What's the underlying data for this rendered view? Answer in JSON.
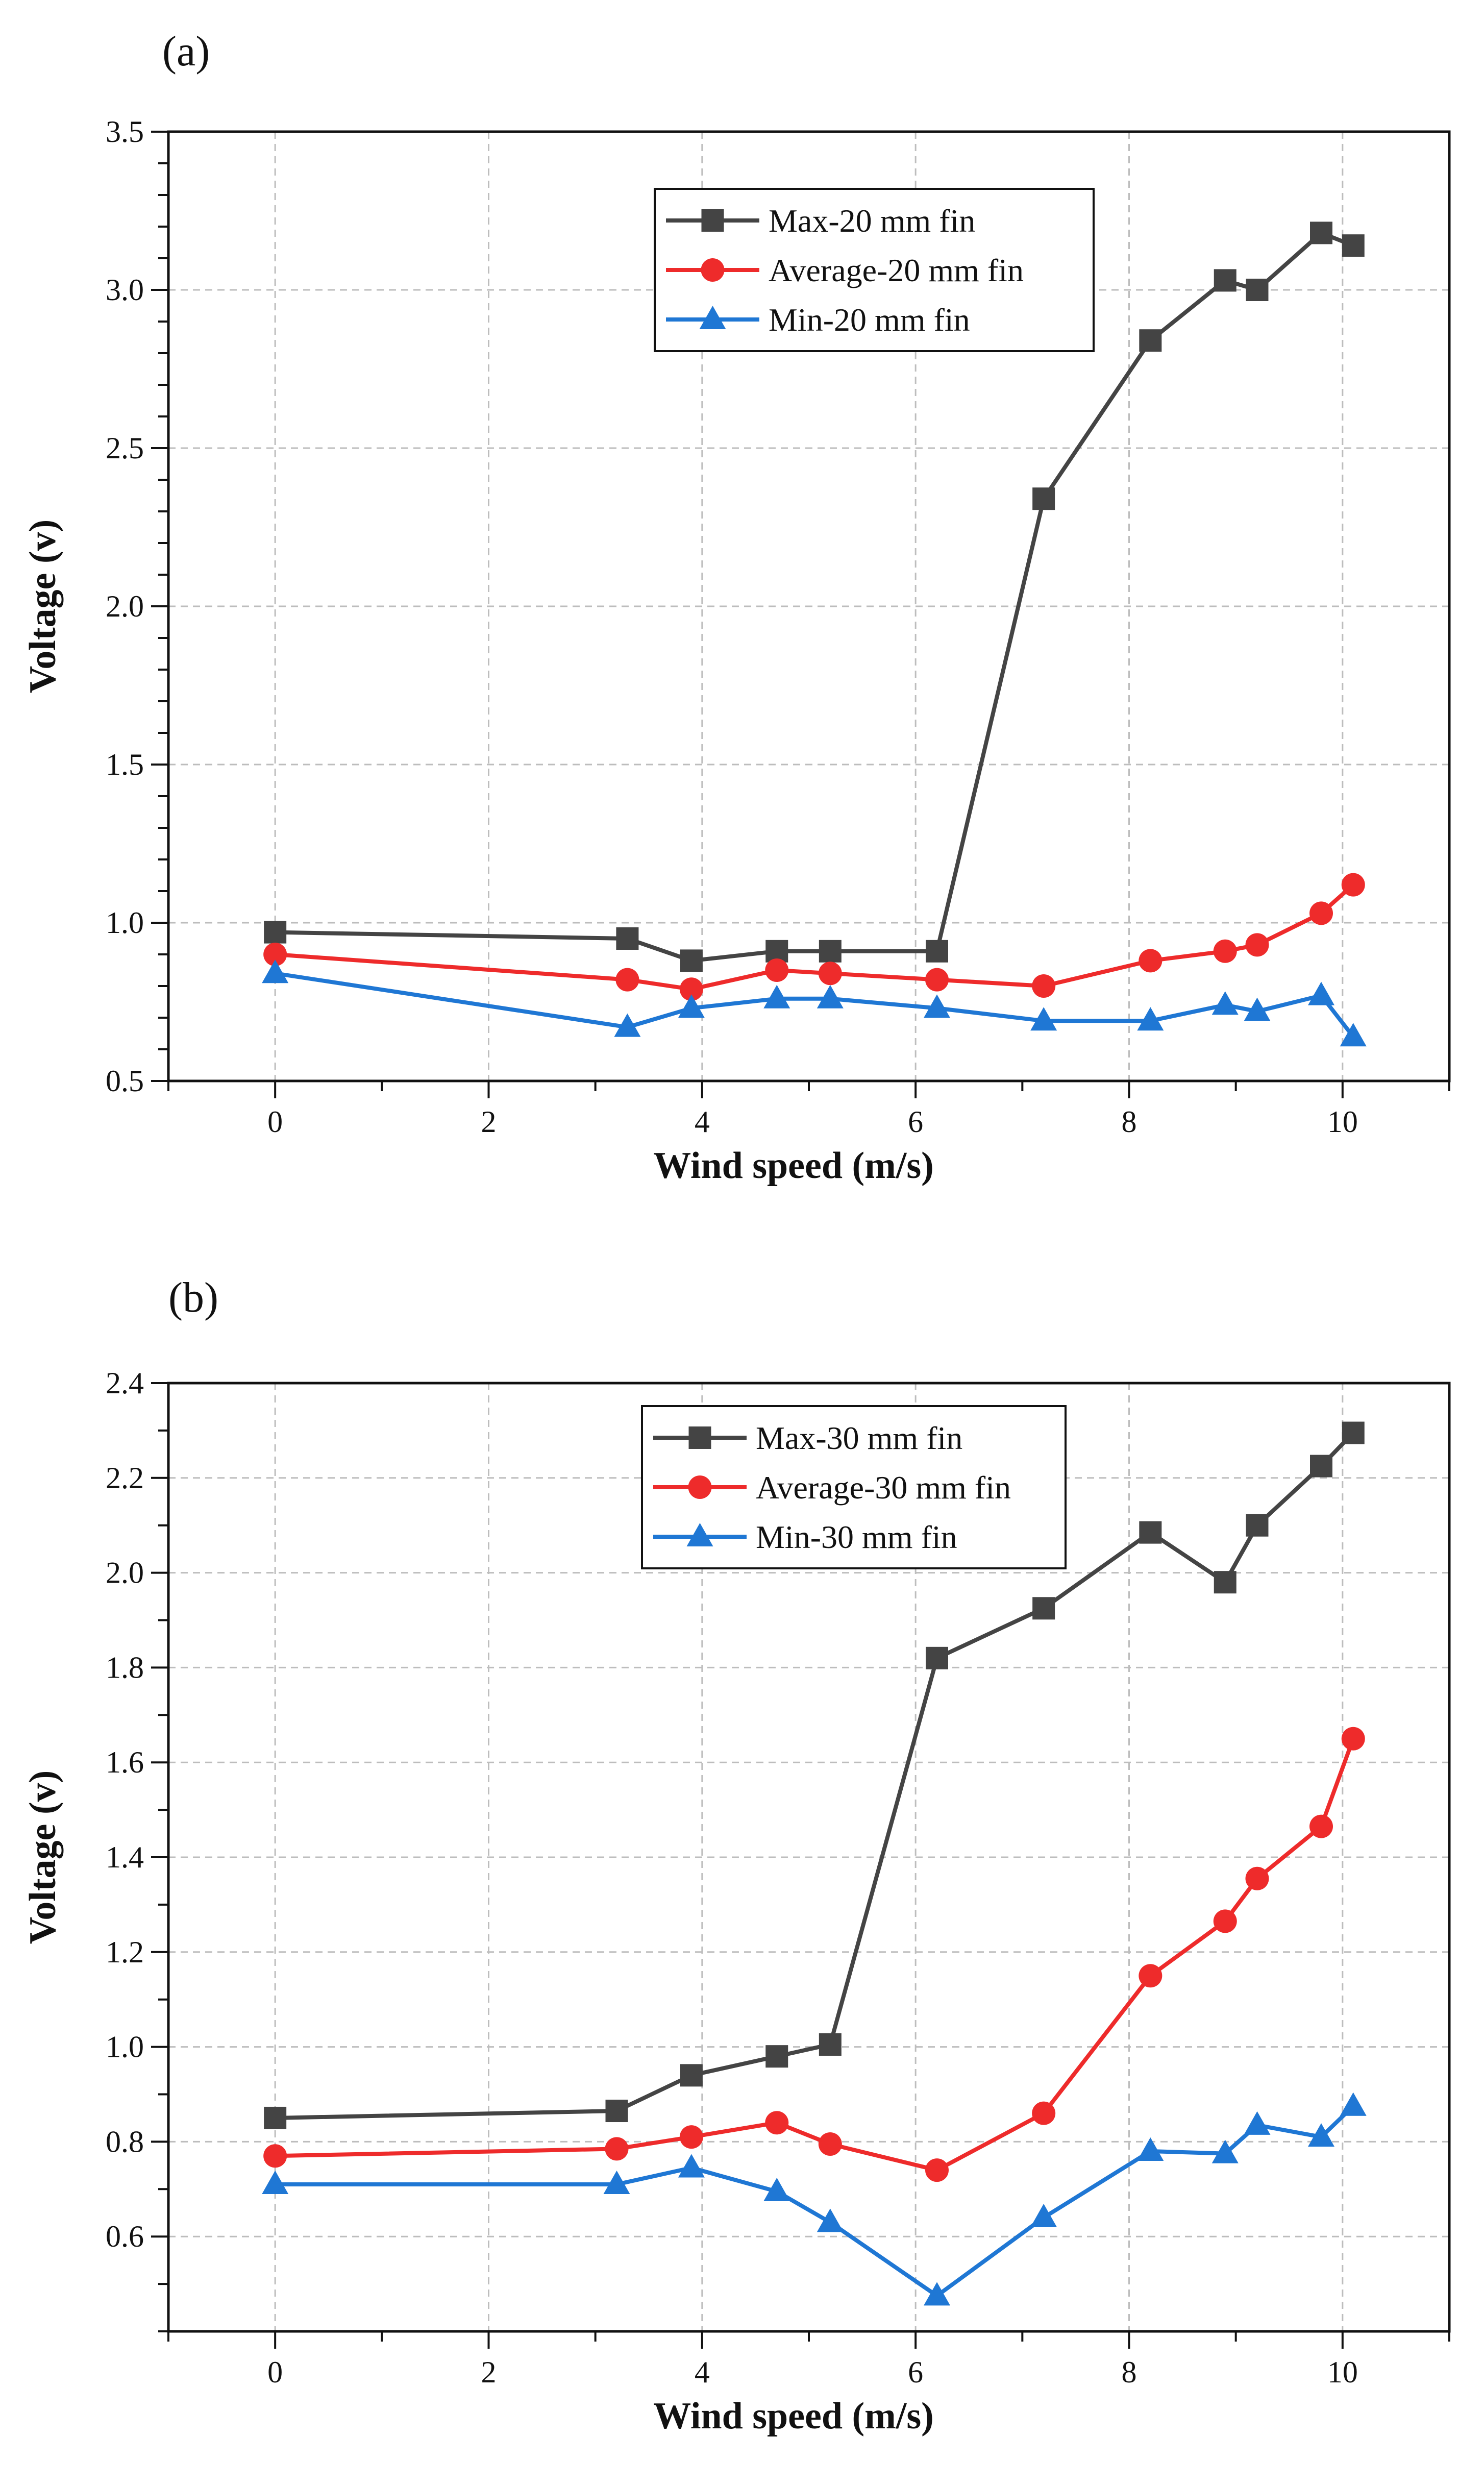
{
  "chart_data": [
    {
      "type": "line",
      "panel_label": "(a)",
      "title": "",
      "xlabel": "Wind speed (m/s)",
      "ylabel": "Voltage (v)",
      "xlim": [
        -1,
        11
      ],
      "ylim": [
        0.5,
        3.5
      ],
      "xticks": [
        0,
        2,
        4,
        6,
        8,
        10
      ],
      "yticks": [
        0.5,
        1.0,
        1.5,
        2.0,
        2.5,
        3.0,
        3.5
      ],
      "xtick_labels": [
        "0",
        "2",
        "4",
        "6",
        "8",
        "10"
      ],
      "ytick_labels": [
        "0.5",
        "1.0",
        "1.5",
        "2.0",
        "2.5",
        "3.0",
        "3.5"
      ],
      "grid": true,
      "legend_position": "top-center-right",
      "x": [
        0,
        3.3,
        3.9,
        4.7,
        5.2,
        6.2,
        7.2,
        8.2,
        8.9,
        9.2,
        9.8,
        10.1
      ],
      "series": [
        {
          "name": "Max-20 mm fin",
          "color": "#444444",
          "marker": "square",
          "values": [
            0.97,
            0.95,
            0.88,
            0.91,
            0.91,
            0.91,
            2.34,
            2.84,
            3.03,
            3.0,
            3.18,
            3.14
          ]
        },
        {
          "name": "Average-20 mm fin",
          "color": "#ee2b2b",
          "marker": "circle",
          "values": [
            0.9,
            0.82,
            0.79,
            0.85,
            0.84,
            0.82,
            0.8,
            0.88,
            0.91,
            0.93,
            1.03,
            1.12
          ]
        },
        {
          "name": "Min-20 mm fin",
          "color": "#1f77d4",
          "marker": "triangle",
          "values": [
            0.84,
            0.67,
            0.73,
            0.76,
            0.76,
            0.73,
            0.69,
            0.69,
            0.74,
            0.72,
            0.77,
            0.64
          ]
        }
      ]
    },
    {
      "type": "line",
      "panel_label": "(b)",
      "title": "",
      "xlabel": "Wind speed (m/s)",
      "ylabel": "Voltage (v)",
      "xlim": [
        -1,
        11
      ],
      "ylim": [
        0.4,
        2.4
      ],
      "xticks": [
        0,
        2,
        4,
        6,
        8,
        10
      ],
      "yticks": [
        0.6,
        0.8,
        1.0,
        1.2,
        1.4,
        1.6,
        1.8,
        2.0,
        2.2,
        2.4
      ],
      "xtick_labels": [
        "0",
        "2",
        "4",
        "6",
        "8",
        "10"
      ],
      "ytick_labels": [
        "0.6",
        "0.8",
        "1.0",
        "1.2",
        "1.4",
        "1.6",
        "1.8",
        "2.0",
        "2.2",
        "2.4"
      ],
      "grid": true,
      "legend_position": "top-center-right",
      "x": [
        0,
        3.2,
        3.9,
        4.7,
        5.2,
        6.2,
        7.2,
        8.2,
        8.9,
        9.2,
        9.8,
        10.1
      ],
      "series": [
        {
          "name": "Max-30 mm fin",
          "color": "#444444",
          "marker": "square",
          "values": [
            0.85,
            0.865,
            0.94,
            0.98,
            1.005,
            1.82,
            1.925,
            2.085,
            1.98,
            2.1,
            2.225,
            2.295
          ]
        },
        {
          "name": "Average-30 mm fin",
          "color": "#ee2b2b",
          "marker": "circle",
          "values": [
            0.77,
            0.785,
            0.81,
            0.84,
            0.795,
            0.74,
            0.86,
            1.15,
            1.265,
            1.355,
            1.465,
            1.65
          ]
        },
        {
          "name": "Min-30 mm fin",
          "color": "#1f77d4",
          "marker": "triangle",
          "values": [
            0.71,
            0.71,
            0.745,
            0.695,
            0.63,
            0.475,
            0.64,
            0.78,
            0.775,
            0.835,
            0.81,
            0.875
          ]
        }
      ]
    }
  ]
}
